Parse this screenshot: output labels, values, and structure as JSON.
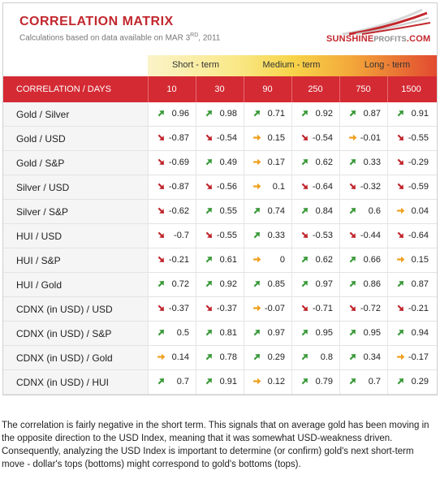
{
  "header": {
    "title": "CORRELATION MATRIX",
    "subtitle_prefix": "Calculations based on data available on  MAR 3",
    "subtitle_sup": "RD",
    "subtitle_suffix": ", 2011"
  },
  "logo": {
    "text_main": "SUNSHINE",
    "text_gray": "PROFITS",
    "text_end": ".COM"
  },
  "terms": {
    "short": "Short - term",
    "medium": "Medium - term",
    "long": "Long - term"
  },
  "table": {
    "label_header": "CORRELATION / DAYS",
    "days": [
      "10",
      "30",
      "90",
      "250",
      "750",
      "1500"
    ],
    "rows": [
      {
        "label": "Gold / Silver",
        "values": [
          "0.96",
          "0.98",
          "0.71",
          "0.92",
          "0.87",
          "0.91"
        ],
        "arrows": [
          "up",
          "up",
          "up",
          "up",
          "up",
          "up"
        ]
      },
      {
        "label": "Gold / USD",
        "values": [
          "-0.87",
          "-0.54",
          "0.15",
          "-0.54",
          "-0.01",
          "-0.55"
        ],
        "arrows": [
          "down",
          "down",
          "right",
          "down",
          "right",
          "down"
        ]
      },
      {
        "label": "Gold / S&P",
        "values": [
          "-0.69",
          "0.49",
          "0.17",
          "0.62",
          "0.33",
          "-0.29"
        ],
        "arrows": [
          "down",
          "up",
          "right",
          "up",
          "up",
          "down"
        ]
      },
      {
        "label": "Silver / USD",
        "values": [
          "-0.87",
          "-0.56",
          "0.1",
          "-0.64",
          "-0.32",
          "-0.59"
        ],
        "arrows": [
          "down",
          "down",
          "right",
          "down",
          "down",
          "down"
        ]
      },
      {
        "label": "Silver / S&P",
        "values": [
          "-0.62",
          "0.55",
          "0.74",
          "0.84",
          "0.6",
          "0.04"
        ],
        "arrows": [
          "down",
          "up",
          "up",
          "up",
          "up",
          "right"
        ]
      },
      {
        "label": "HUI / USD",
        "values": [
          "-0.7",
          "-0.55",
          "0.33",
          "-0.53",
          "-0.44",
          "-0.64"
        ],
        "arrows": [
          "down",
          "down",
          "up",
          "down",
          "down",
          "down"
        ]
      },
      {
        "label": "HUI / S&P",
        "values": [
          "-0.21",
          "0.61",
          "0",
          "0.62",
          "0.66",
          "0.15"
        ],
        "arrows": [
          "down",
          "up",
          "right",
          "up",
          "up",
          "right"
        ]
      },
      {
        "label": "HUI / Gold",
        "values": [
          "0.72",
          "0.92",
          "0.85",
          "0.97",
          "0.86",
          "0.87"
        ],
        "arrows": [
          "up",
          "up",
          "up",
          "up",
          "up",
          "up"
        ]
      },
      {
        "label": "CDNX (in USD) / USD",
        "values": [
          "-0.37",
          "-0.37",
          "-0.07",
          "-0.71",
          "-0.72",
          "-0.21"
        ],
        "arrows": [
          "down",
          "down",
          "right",
          "down",
          "down",
          "down"
        ]
      },
      {
        "label": "CDNX (in USD) / S&P",
        "values": [
          "0.5",
          "0.81",
          "0.97",
          "0.95",
          "0.95",
          "0.94"
        ],
        "arrows": [
          "up",
          "up",
          "up",
          "up",
          "up",
          "up"
        ]
      },
      {
        "label": "CDNX (in USD) / Gold",
        "values": [
          "0.14",
          "0.78",
          "0.29",
          "0.8",
          "0.34",
          "-0.17"
        ],
        "arrows": [
          "right",
          "up",
          "up",
          "up",
          "up",
          "right"
        ]
      },
      {
        "label": "CDNX (in USD) / HUI",
        "values": [
          "0.7",
          "0.91",
          "0.12",
          "0.79",
          "0.7",
          "0.29"
        ],
        "arrows": [
          "up",
          "up",
          "right",
          "up",
          "up",
          "up"
        ]
      }
    ]
  },
  "caption": "The correlation is fairly negative in the short term. This signals that on average gold has been moving in the opposite direction to the USD Index, meaning that it was somewhat USD-weakness driven. Consequently, analyzing the USD Index is important to determine (or confirm) gold's next short-term move - dollar's tops (bottoms) might correspond to gold's bottoms (tops).",
  "colors": {
    "accent_red": "#d42a33",
    "up_green": "#3a9a3a",
    "down_red": "#c0262c",
    "neutral_orange": "#f0a020"
  }
}
